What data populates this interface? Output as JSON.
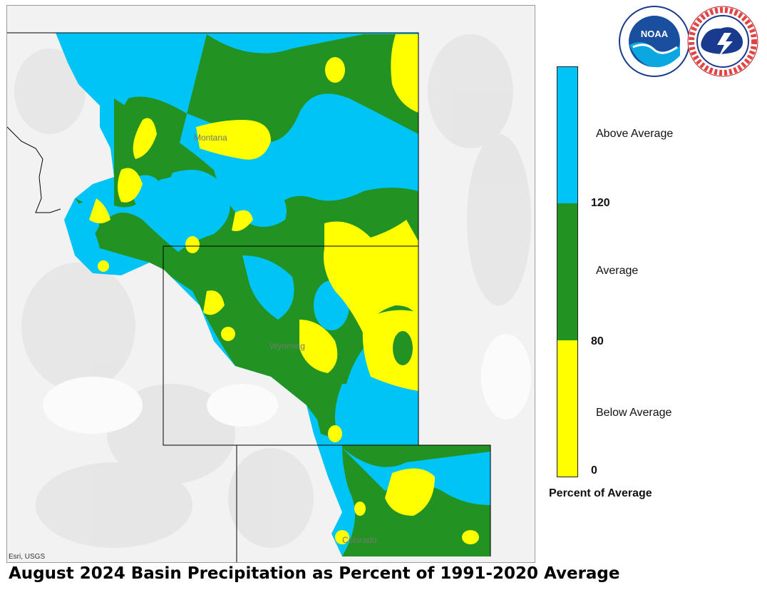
{
  "map": {
    "state_labels": {
      "montana": "Montana",
      "wyoming": "Wyoming",
      "colorado": "Colorado"
    },
    "attribution": "Esri, USGS"
  },
  "legend": {
    "categories": [
      {
        "label": "Above Average",
        "color": "#00c4f6"
      },
      {
        "label": "Average",
        "color": "#229322"
      },
      {
        "label": "Below Average",
        "color": "#ffff00"
      }
    ],
    "breaks": [
      "120",
      "80",
      "0"
    ],
    "title": "Percent of Average"
  },
  "logos": {
    "noaa": "NOAA",
    "nws": "NATIONAL WEATHER SERVICE"
  },
  "caption": "August 2024 Basin Precipitation as Percent of 1991-2020 Average"
}
